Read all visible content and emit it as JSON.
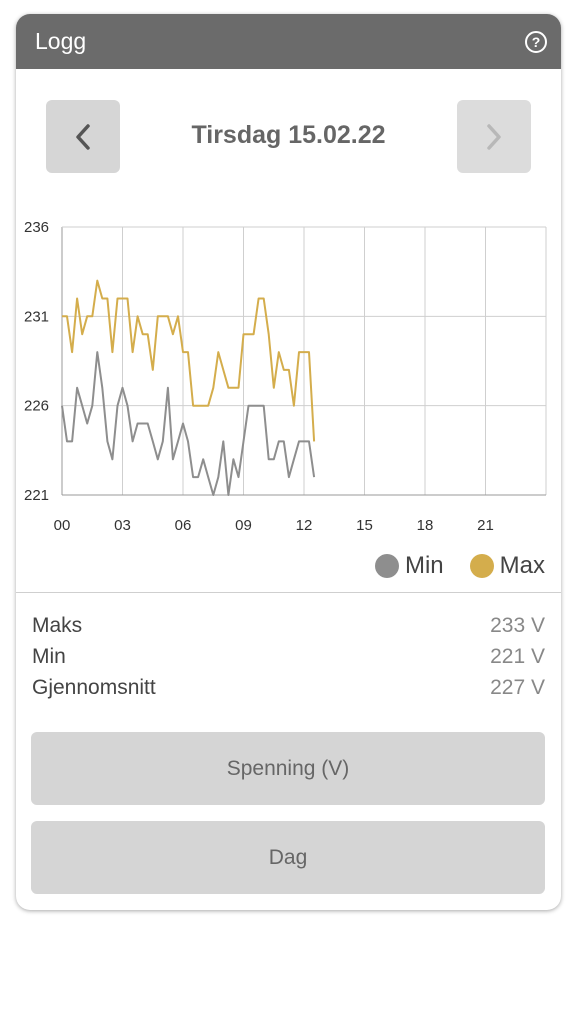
{
  "header": {
    "title": "Logg",
    "help_icon": "help-circle-icon"
  },
  "navigation": {
    "prev_icon": "chevron-left-icon",
    "next_icon": "chevron-right-icon",
    "date": "Tirsdag 15.02.22"
  },
  "colors": {
    "min": "#8e8e8e",
    "max": "#d4ad4c",
    "header": "#6b6b6b"
  },
  "chart_data": {
    "type": "line",
    "ylim": [
      221,
      236
    ],
    "yticks": [
      "236",
      "231",
      "226",
      "221"
    ],
    "xlim": [
      0,
      24
    ],
    "xticks": [
      "00",
      "03",
      "06",
      "09",
      "12",
      "15",
      "18",
      "21"
    ],
    "grid": true,
    "legend": "bottom-right",
    "series": [
      {
        "name": "Max",
        "x": [
          0,
          0.25,
          0.5,
          0.75,
          1,
          1.25,
          1.5,
          1.75,
          2,
          2.25,
          2.5,
          2.75,
          3,
          3.25,
          3.5,
          3.75,
          4,
          4.25,
          4.5,
          4.75,
          5,
          5.25,
          5.5,
          5.75,
          6,
          6.25,
          6.5,
          6.75,
          7,
          7.25,
          7.5,
          7.75,
          8,
          8.25,
          8.5,
          8.75,
          9,
          9.25,
          9.5,
          9.75,
          10,
          10.25,
          10.5,
          10.75,
          11,
          11.25,
          11.5,
          11.75,
          12,
          12.25,
          12.5
        ],
        "values": [
          231,
          231,
          229,
          232,
          230,
          231,
          231,
          233,
          232,
          232,
          229,
          232,
          232,
          232,
          229,
          231,
          230,
          230,
          228,
          231,
          231,
          231,
          230,
          231,
          229,
          229,
          226,
          226,
          226,
          226,
          227,
          229,
          228,
          227,
          227,
          227,
          230,
          230,
          230,
          232,
          232,
          230,
          227,
          229,
          228,
          228,
          226,
          229,
          229,
          229,
          224
        ]
      },
      {
        "name": "Min",
        "x": [
          0,
          0.25,
          0.5,
          0.75,
          1,
          1.25,
          1.5,
          1.75,
          2,
          2.25,
          2.5,
          2.75,
          3,
          3.25,
          3.5,
          3.75,
          4,
          4.25,
          4.5,
          4.75,
          5,
          5.25,
          5.5,
          5.75,
          6,
          6.25,
          6.5,
          6.75,
          7,
          7.25,
          7.5,
          7.75,
          8,
          8.25,
          8.5,
          8.75,
          9,
          9.25,
          9.5,
          9.75,
          10,
          10.25,
          10.5,
          10.75,
          11,
          11.25,
          11.5,
          11.75,
          12,
          12.25,
          12.5
        ],
        "values": [
          226,
          224,
          224,
          227,
          226,
          225,
          226,
          229,
          227,
          224,
          223,
          226,
          227,
          226,
          224,
          225,
          225,
          225,
          224,
          223,
          224,
          227,
          223,
          224,
          225,
          224,
          222,
          222,
          223,
          222,
          221,
          222,
          224,
          221,
          223,
          222,
          224,
          226,
          226,
          226,
          226,
          223,
          223,
          224,
          224,
          222,
          223,
          224,
          224,
          224,
          222
        ]
      }
    ]
  },
  "legend": {
    "min_label": "Min",
    "max_label": "Max"
  },
  "stats": [
    {
      "label": "Maks",
      "value": "233 V"
    },
    {
      "label": "Min",
      "value": "221 V"
    },
    {
      "label": "Gjennomsnitt",
      "value": "227 V"
    }
  ],
  "buttons": {
    "measure": "Spenning (V)",
    "period": "Dag"
  }
}
